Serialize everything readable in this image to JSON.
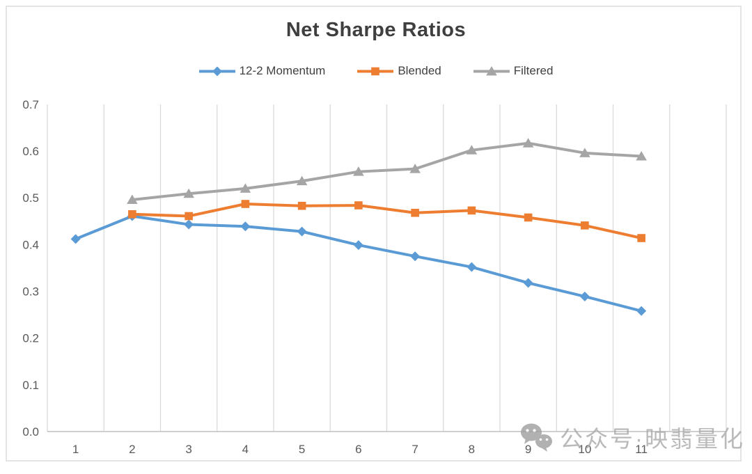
{
  "chart_data": {
    "type": "line",
    "title": "Net Sharpe Ratios",
    "categories": [
      "1",
      "2",
      "3",
      "4",
      "5",
      "6",
      "7",
      "8",
      "9",
      "10",
      "11"
    ],
    "series": [
      {
        "name": "12-2 Momentum",
        "color": "#5B9BD5",
        "marker": "diamond",
        "values": [
          0.412,
          0.461,
          0.443,
          0.439,
          0.428,
          0.399,
          0.375,
          0.352,
          0.318,
          0.289,
          0.258
        ]
      },
      {
        "name": "Blended",
        "color": "#ED7D31",
        "marker": "square",
        "values": [
          null,
          0.465,
          0.461,
          0.487,
          0.483,
          0.484,
          0.468,
          0.473,
          0.458,
          0.441,
          0.414
        ]
      },
      {
        "name": "Filtered",
        "color": "#A5A5A5",
        "marker": "triangle",
        "values": [
          null,
          0.496,
          0.509,
          0.52,
          0.536,
          0.556,
          0.562,
          0.602,
          0.617,
          0.596,
          0.589
        ]
      }
    ],
    "xlabel": "",
    "ylabel": "",
    "ylim": [
      0.0,
      0.7
    ],
    "yticks": [
      "0.0",
      "0.1",
      "0.2",
      "0.3",
      "0.4",
      "0.5",
      "0.6",
      "0.7"
    ],
    "grid": "vertical-only",
    "legend_position": "top",
    "axis_color": "#BFBFBF",
    "gridline_color": "#DADADA",
    "tick_label_color": "#595959"
  },
  "watermark": {
    "icon": "wechat-icon",
    "text": "公众号·映翡量化"
  }
}
